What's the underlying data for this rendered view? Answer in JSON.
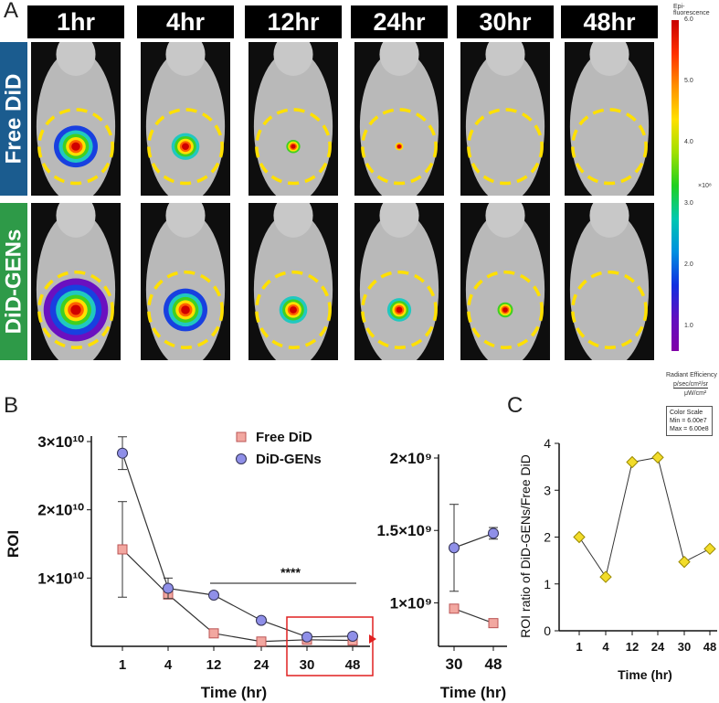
{
  "panel_labels": {
    "a": "A",
    "b": "B",
    "c": "C"
  },
  "timepoints": [
    "1hr",
    "4hr",
    "12hr",
    "24hr",
    "30hr",
    "48hr"
  ],
  "rows": [
    "Free DiD",
    "DiD-GENs"
  ],
  "colors": {
    "free_row": "#1b5c8f",
    "gens_row": "#2e9a48",
    "free_series": "#f2a7a0",
    "gens_series": "#8f8fe8",
    "ratio_points": "#f2dc2a",
    "roi_circle": "#ffe000",
    "highlight_box": "#e02020"
  },
  "imaging_signal": {
    "free_did": [
      0.85,
      0.7,
      0.45,
      0.35,
      0.0,
      0.0
    ],
    "did_gens": [
      1.0,
      0.85,
      0.7,
      0.6,
      0.5,
      0.0
    ]
  },
  "colorbar": {
    "title": "Epi-fluorescence",
    "ticks": [
      "6.0",
      "5.0",
      "4.0",
      "3.0",
      "2.0",
      "1.0"
    ],
    "exponent": "×10⁸",
    "unit_label": "Radiant Efficiency",
    "unit_num": "p/sec/cm²/sr",
    "unit_den": "μW/cm²",
    "scale_title": "Color Scale",
    "scale_min": "Min = 6.00e7",
    "scale_max": "Max = 6.00e8"
  },
  "chart_data": [
    {
      "type": "line",
      "title": "",
      "xlabel": "Time (hr)",
      "ylabel": "ROI",
      "categories": [
        "1",
        "4",
        "12",
        "24",
        "30",
        "48"
      ],
      "ylim": [
        0,
        30000000000
      ],
      "yticks": [
        10000000000,
        20000000000,
        30000000000
      ],
      "ytick_labels": [
        "1×10¹⁰",
        "2×10¹⁰",
        "3×10¹⁰"
      ],
      "series": [
        {
          "name": "Free DiD",
          "marker": "square",
          "values": [
            14200000000,
            7600000000,
            1900000000,
            700000000,
            960000000,
            860000000
          ],
          "errors": [
            7000000000,
            500000000,
            0,
            0,
            0,
            0
          ]
        },
        {
          "name": "DiD-GENs",
          "marker": "circle",
          "values": [
            28300000000,
            8500000000,
            7500000000,
            3800000000,
            1380000000,
            1480000000
          ],
          "errors": [
            2400000000,
            1500000000,
            0,
            0,
            0,
            0
          ]
        }
      ],
      "annotation": {
        "text": "****",
        "from": "12",
        "to": "48"
      },
      "highlight": {
        "from": "30",
        "to": "48"
      }
    },
    {
      "type": "line",
      "title": "",
      "xlabel": "Time (hr)",
      "categories": [
        "30",
        "48"
      ],
      "ylim": [
        700000000,
        2000000000
      ],
      "yticks": [
        1000000000,
        1500000000,
        2000000000
      ],
      "ytick_labels": [
        "1×10⁹",
        "1.5×10⁹",
        "2×10⁹"
      ],
      "series": [
        {
          "name": "Free DiD",
          "marker": "square",
          "values": [
            960000000,
            860000000
          ],
          "errors": [
            0,
            0
          ]
        },
        {
          "name": "DiD-GENs",
          "marker": "circle",
          "values": [
            1380000000,
            1480000000
          ],
          "errors": [
            300000000,
            40000000
          ]
        }
      ]
    },
    {
      "type": "line",
      "title": "",
      "xlabel": "Time (hr)",
      "ylabel": "ROI ratio of DiD-GENs/Free DiD",
      "categories": [
        "1",
        "4",
        "12",
        "24",
        "30",
        "48"
      ],
      "ylim": [
        0,
        4
      ],
      "yticks": [
        0,
        1,
        2,
        3,
        4
      ],
      "ytick_labels": [
        "0",
        "1",
        "2",
        "3",
        "4"
      ],
      "series": [
        {
          "name": "ROI ratio",
          "marker": "diamond",
          "values": [
            2.0,
            1.15,
            3.6,
            3.7,
            1.47,
            1.75
          ]
        }
      ]
    }
  ]
}
